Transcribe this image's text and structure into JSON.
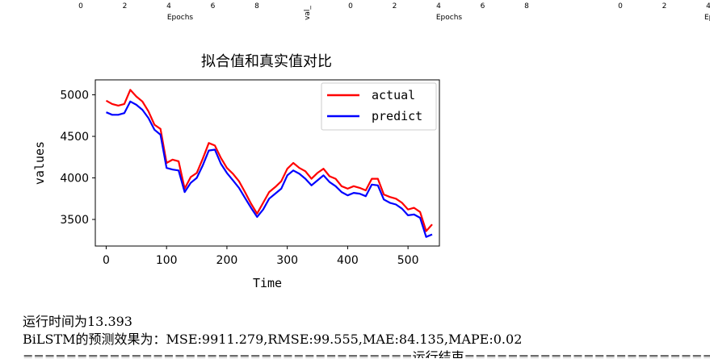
{
  "top_strip": {
    "xlabel_1": "Epochs",
    "ylabel_2": "val_",
    "xlabel_2": "Epochs",
    "xlabel_3": "Ep",
    "ticks_1": [
      "0",
      "2",
      "4",
      "6",
      "8"
    ],
    "ticks_2": [
      "0",
      "2",
      "4",
      "6",
      "8"
    ],
    "ticks_3": [
      "0",
      "2",
      "4"
    ]
  },
  "chart_data": {
    "type": "line",
    "title": "拟合值和真实值对比",
    "xlabel": "Time",
    "ylabel": "values",
    "xlim": [
      -18,
      552
    ],
    "ylim": [
      3180,
      5180
    ],
    "xticks": [
      0,
      100,
      200,
      300,
      400,
      500
    ],
    "yticks": [
      3500,
      4000,
      4500,
      5000
    ],
    "legend_position": "top-right",
    "x": [
      0,
      10,
      20,
      30,
      40,
      50,
      60,
      70,
      80,
      90,
      100,
      110,
      120,
      130,
      140,
      150,
      160,
      170,
      180,
      190,
      200,
      210,
      220,
      230,
      240,
      250,
      260,
      270,
      280,
      290,
      300,
      310,
      320,
      330,
      340,
      350,
      360,
      370,
      380,
      390,
      400,
      410,
      420,
      430,
      440,
      450,
      460,
      470,
      480,
      490,
      500,
      510,
      520,
      530,
      540
    ],
    "series": [
      {
        "name": "actual",
        "color": "#ff0000",
        "values": [
          4930,
          4890,
          4870,
          4890,
          5060,
          4980,
          4920,
          4800,
          4640,
          4590,
          4180,
          4220,
          4200,
          3870,
          4010,
          4060,
          4230,
          4420,
          4390,
          4240,
          4120,
          4050,
          3960,
          3830,
          3690,
          3570,
          3700,
          3830,
          3890,
          3960,
          4110,
          4180,
          4120,
          4080,
          3990,
          4060,
          4110,
          4020,
          3990,
          3900,
          3870,
          3900,
          3880,
          3850,
          3990,
          3990,
          3800,
          3770,
          3750,
          3700,
          3620,
          3640,
          3590,
          3360,
          3440
        ]
      },
      {
        "name": "predict",
        "color": "#0000ff",
        "values": [
          4790,
          4760,
          4760,
          4780,
          4920,
          4880,
          4820,
          4720,
          4580,
          4520,
          4120,
          4100,
          4090,
          3830,
          3940,
          4000,
          4150,
          4330,
          4340,
          4170,
          4060,
          3970,
          3880,
          3760,
          3640,
          3530,
          3620,
          3750,
          3810,
          3870,
          4030,
          4090,
          4050,
          3990,
          3910,
          3970,
          4030,
          3950,
          3900,
          3830,
          3790,
          3820,
          3810,
          3780,
          3920,
          3910,
          3740,
          3700,
          3680,
          3630,
          3550,
          3560,
          3520,
          3290,
          3320
        ]
      }
    ]
  },
  "console": {
    "line1": "运行时间为13.393",
    "line2": "BiLSTM的预测效果为：MSE:9911.279,RMSE:99.555,MAE:84.135,MAPE:0.02",
    "line3": "====================================运行结束========================================"
  }
}
